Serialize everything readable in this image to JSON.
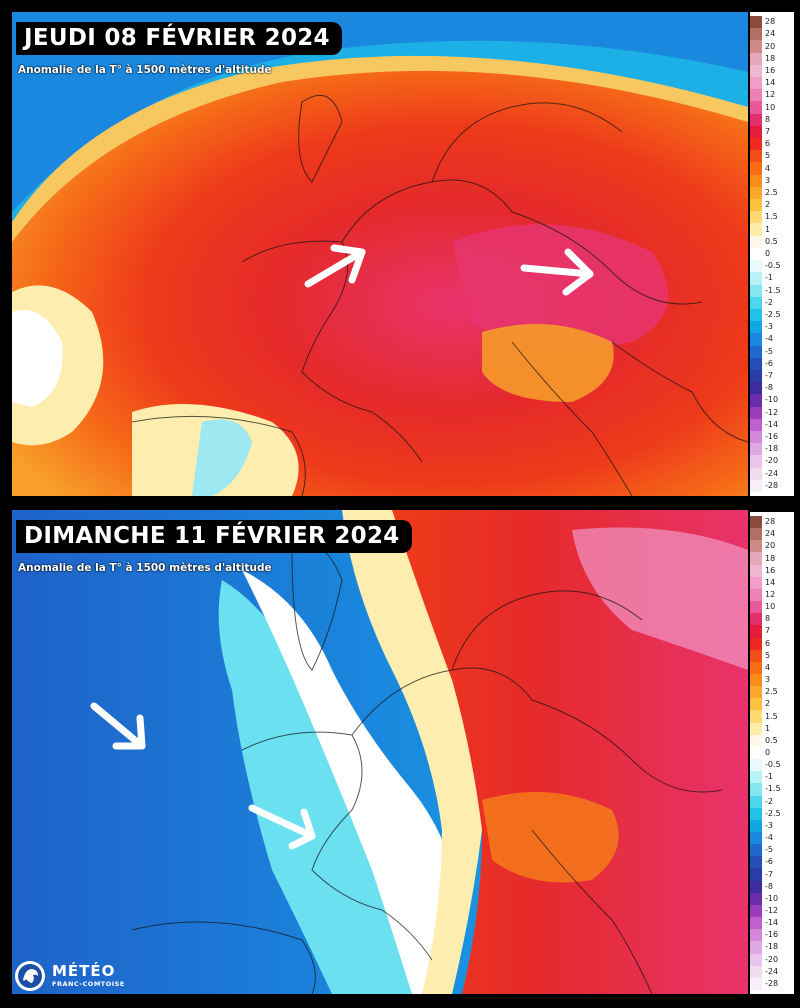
{
  "panels": [
    {
      "title": "JEUDI 08 FÉVRIER 2024",
      "subtitle": "Anomalie de la T° à 1500 mètres d'altitude",
      "arrows": 2
    },
    {
      "title": "DIMANCHE 11 FÉVRIER 2024",
      "subtitle": "Anomalie de la T° à 1500 mètres d'altitude",
      "arrows": 2
    }
  ],
  "legend": {
    "labels": [
      "28",
      "24",
      "20",
      "18",
      "16",
      "14",
      "12",
      "10",
      "8",
      "7",
      "6",
      "5",
      "4",
      "3",
      "2.5",
      "2",
      "1.5",
      "1",
      "0.5",
      "0",
      "-0.5",
      "-1",
      "-1.5",
      "-2",
      "-2.5",
      "-3",
      "-4",
      "-5",
      "-6",
      "-7",
      "-8",
      "-10",
      "-12",
      "-14",
      "-16",
      "-18",
      "-20",
      "-24",
      "-28"
    ],
    "colors": [
      "#8a4a3c",
      "#b46f64",
      "#d08a86",
      "#e5a8b8",
      "#f0b8d0",
      "#f29cc8",
      "#ee7fb8",
      "#e8589a",
      "#e0306c",
      "#e61c3c",
      "#ee2a20",
      "#f24e18",
      "#f76e14",
      "#fa8c1a",
      "#fba72a",
      "#fdc140",
      "#fdd970",
      "#fdecaa",
      "#fff8e6",
      "#ffffff",
      "#e8fafc",
      "#b8f2f6",
      "#84e6f0",
      "#4cd7ec",
      "#22c2e8",
      "#14a6e4",
      "#1a88de",
      "#2068cc",
      "#2450b8",
      "#2a3ca8",
      "#3c2c9c",
      "#6a2ca8",
      "#9a3cbc",
      "#c060d0",
      "#d488dc",
      "#e0a8e2",
      "#eac4ea",
      "#f2dcf0",
      "#f8eef8"
    ]
  },
  "logo": {
    "name": "MÉTÉO",
    "tagline": "FRANC-COMTOISE"
  }
}
